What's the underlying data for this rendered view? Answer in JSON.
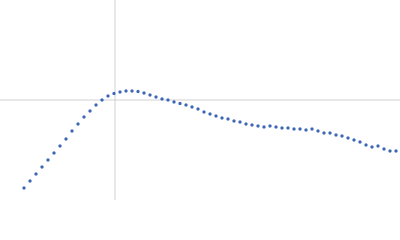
{
  "chart_data": {
    "type": "scatter",
    "color": "#3b67b5",
    "xlim": [
      0,
      100
    ],
    "ylim": [
      0,
      100
    ],
    "ref_x": 28.75,
    "ref_y": 50,
    "x": [
      6,
      7.5,
      9,
      10.5,
      12,
      13.5,
      15,
      16.5,
      18,
      19.5,
      21,
      22.5,
      24,
      25.5,
      27,
      28.5,
      30,
      31.5,
      33,
      34.5,
      36,
      37.5,
      39,
      40.5,
      42,
      43.5,
      45,
      46.5,
      48,
      49.5,
      51,
      52.5,
      54,
      55.5,
      57,
      58.5,
      60,
      61.5,
      63,
      64.5,
      66,
      67.5,
      69,
      70.5,
      72,
      73.5,
      75,
      76.5,
      78,
      79.5,
      81,
      82.5,
      84,
      85.5,
      87,
      88.5,
      90,
      91.5,
      93,
      94.5,
      96,
      97.5,
      99
    ],
    "values": [
      6,
      9.5,
      13,
      16.5,
      20,
      23.5,
      27,
      30.5,
      34.5,
      38,
      41.5,
      44.5,
      47.5,
      50,
      52,
      53.25,
      54,
      54.5,
      54.5,
      54.25,
      53.5,
      52.5,
      51.5,
      50.5,
      50,
      49,
      48.25,
      47.5,
      46.5,
      45.5,
      44,
      43,
      42,
      41,
      40.5,
      39.5,
      39,
      38,
      37.5,
      37,
      36.5,
      37,
      36.5,
      36,
      36,
      35.5,
      35.5,
      35,
      35.5,
      34.5,
      33.5,
      33.5,
      32.5,
      32,
      31,
      30,
      29,
      27.5,
      26.5,
      27,
      25.5,
      24.5,
      24.5
    ]
  }
}
